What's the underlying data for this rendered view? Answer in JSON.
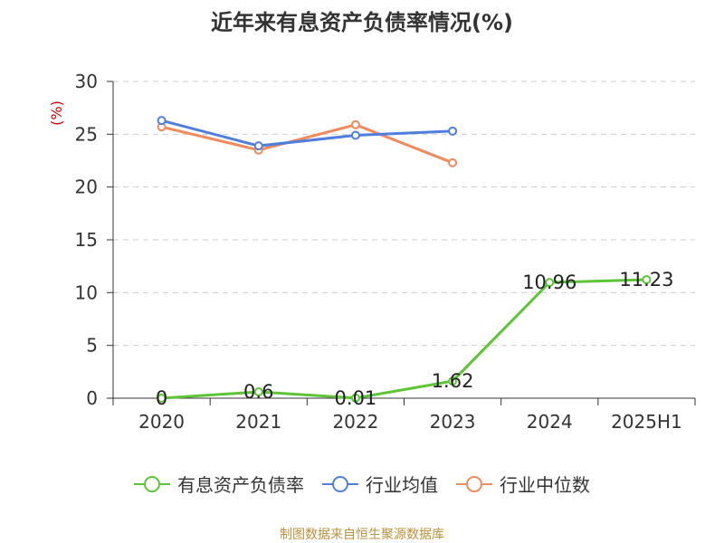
{
  "title": "近年来有息资产负债率情况(%)",
  "source": "制图数据来自恒生聚源数据库",
  "colors": {
    "有息资产负债率": "#5cc534",
    "行业均值": "#4f7fdd",
    "行业中位数": "#f38a5b"
  },
  "chart_data": {
    "type": "line",
    "title": "近年来有息资产负债率情况(%)",
    "ylabel": "(%)",
    "xlabel": "",
    "categories": [
      "2020",
      "2021",
      "2022",
      "2023",
      "2024",
      "2025H1"
    ],
    "ylim": [
      0,
      30
    ],
    "yticks": [
      0,
      5,
      10,
      15,
      20,
      25,
      30
    ],
    "grid": true,
    "legend_position": "bottom",
    "series": [
      {
        "name": "有息资产负债率",
        "values": [
          0,
          0.6,
          0.01,
          1.62,
          10.96,
          11.23
        ],
        "labels": [
          "0",
          "0.6",
          "0.01",
          "1.62",
          "10.96",
          "11.23"
        ]
      },
      {
        "name": "行业均值",
        "values": [
          26.3,
          23.9,
          24.9,
          25.3,
          null,
          null
        ]
      },
      {
        "name": "行业中位数",
        "values": [
          25.7,
          23.5,
          25.9,
          22.3,
          null,
          null
        ]
      }
    ]
  }
}
